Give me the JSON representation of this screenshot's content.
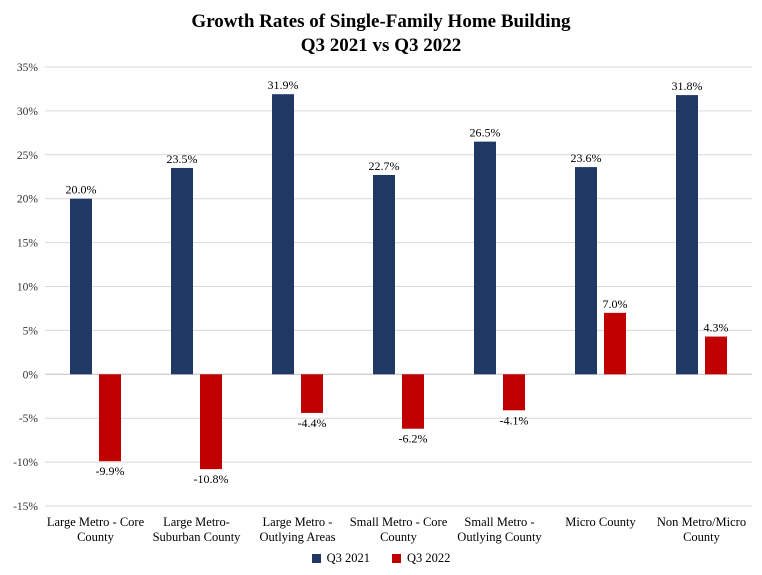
{
  "chart_data": {
    "type": "bar",
    "title": "Growth Rates of Single-Family Home Building",
    "subtitle": "Q3 2021 vs Q3 2022",
    "categories": [
      [
        "Large Metro - Core",
        "County"
      ],
      [
        "Large Metro-",
        "Suburban County"
      ],
      [
        "Large Metro -",
        "Outlying Areas"
      ],
      [
        "Small Metro - Core",
        "County"
      ],
      [
        "Small Metro -",
        "Outlying County"
      ],
      [
        "Micro County"
      ],
      [
        "Non Metro/Micro",
        "County"
      ]
    ],
    "series": [
      {
        "name": "Q3 2021",
        "color": "#1f3864",
        "values": [
          20.0,
          23.5,
          31.9,
          22.7,
          26.5,
          23.6,
          31.8
        ],
        "labels": [
          "20.0%",
          "23.5%",
          "31.9%",
          "22.7%",
          "26.5%",
          "23.6%",
          "31.8%"
        ]
      },
      {
        "name": "Q3 2022",
        "color": "#c00000",
        "values": [
          -9.9,
          -10.8,
          -4.4,
          -6.2,
          -4.1,
          7.0,
          4.3
        ],
        "labels": [
          "-9.9%",
          "-10.8%",
          "-4.4%",
          "-6.2%",
          "-4.1%",
          "7.0%",
          "4.3%"
        ]
      }
    ],
    "yticks": [
      35,
      30,
      25,
      20,
      15,
      10,
      5,
      0,
      -5,
      -10,
      -15
    ],
    "ytick_labels": [
      "35%",
      "30%",
      "25%",
      "20%",
      "15%",
      "10%",
      "5%",
      "0%",
      "-5%",
      "-10%",
      "-15%"
    ],
    "ylim": [
      -15,
      35
    ],
    "grid": true,
    "legend_position": "bottom"
  }
}
